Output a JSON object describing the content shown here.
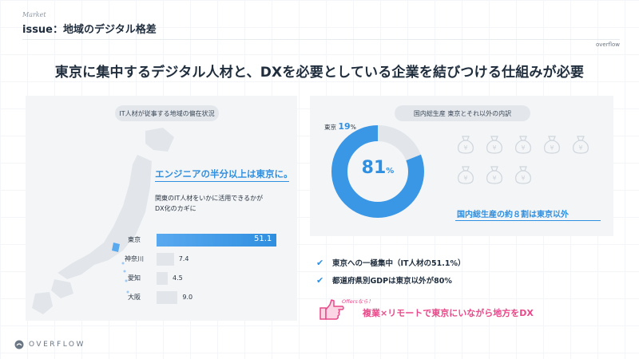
{
  "header": {
    "section": "Market",
    "issue": "issue：地域のデジタル格差",
    "brand": "overflow"
  },
  "headline": "東京に集中するデジタル人材と、DXを必要としている企業を結びつける仕組みが必要",
  "left_panel": {
    "pill": "IT人材が従事する地域の偏在状況",
    "callout": "エンジニアの半分以上は東京に。",
    "subtext_line1": "関東のIT人材をいかに活用できるかが",
    "subtext_line2": "DX化のカギに",
    "bars": [
      {
        "label": "東京",
        "value": 51.1,
        "value_text": "51.1"
      },
      {
        "label": "神奈川",
        "value": 7.4,
        "value_text": "7.4"
      },
      {
        "label": "愛知",
        "value": 4.5,
        "value_text": "4.5"
      },
      {
        "label": "大阪",
        "value": 9.0,
        "value_text": "9.0"
      }
    ]
  },
  "right_panel": {
    "pill": "国内総生産 東京とそれ以外の内訳",
    "tokyo_label": "東京",
    "tokyo_value": "19",
    "tokyo_unit": "%",
    "other_value": "81",
    "other_unit": "%",
    "callout": "国内総生産の約８割は東京以外",
    "bag_icon": "yen-money-bag-icon"
  },
  "checks": [
    "東京への一極集中（IT人材の51.1%）",
    "都道府県別GDPは東京以外が80%"
  ],
  "offer": {
    "small": "Offersなら！",
    "text": "複業×リモートで東京にいながら地方をDX"
  },
  "footer": {
    "brand": "OVERFLOW"
  },
  "colors": {
    "accent": "#2f8fe0",
    "pink": "#e84a8a",
    "panel": "#f3f5f7",
    "muted_bar": "#e2e6eb"
  },
  "chart_data": [
    {
      "type": "bar",
      "title": "IT人材が従事する地域の偏在状況",
      "categories": [
        "東京",
        "神奈川",
        "愛知",
        "大阪"
      ],
      "values": [
        51.1,
        7.4,
        4.5,
        9.0
      ]
    },
    {
      "type": "pie",
      "title": "国内総生産 東京とそれ以外の内訳",
      "categories": [
        "東京",
        "東京以外"
      ],
      "values": [
        19,
        81
      ]
    }
  ]
}
